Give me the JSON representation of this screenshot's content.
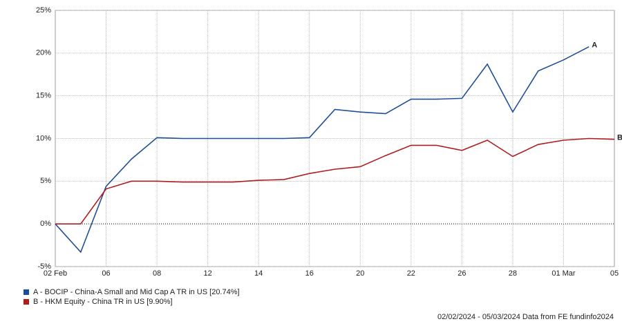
{
  "chart_data": {
    "type": "line",
    "categories": [
      "02 Feb",
      null,
      "06",
      null,
      "08",
      null,
      "12",
      null,
      "14",
      null,
      "16",
      null,
      "20",
      null,
      "22",
      null,
      "26",
      null,
      "28",
      null,
      "01 Mar",
      null,
      "05"
    ],
    "series": [
      {
        "name": "A - BOCIP - China-A Small and Mid Cap A TR in US [20.74%]",
        "label": "A",
        "color": "#1f4e99",
        "values": [
          0,
          -3.3,
          4.4,
          7.6,
          10.1,
          10.0,
          10.0,
          10.0,
          10.0,
          10.0,
          10.1,
          13.4,
          13.1,
          12.9,
          14.6,
          14.6,
          14.7,
          18.7,
          13.1,
          17.9,
          19.2,
          20.74,
          null
        ]
      },
      {
        "name": "B - HKM Equity - China TR in US [9.90%]",
        "label": "B",
        "color": "#b01c1c",
        "values": [
          0,
          0,
          4.1,
          5.0,
          5.0,
          4.9,
          4.9,
          4.9,
          5.1,
          5.2,
          5.9,
          6.4,
          6.7,
          8.0,
          9.2,
          9.2,
          8.6,
          9.8,
          7.9,
          9.3,
          9.8,
          10.0,
          9.9
        ]
      }
    ],
    "ylim": [
      -5,
      25
    ],
    "yticks": [
      {
        "value": -5,
        "label": "-5%"
      },
      {
        "value": 0,
        "label": "0%"
      },
      {
        "value": 5,
        "label": "5%"
      },
      {
        "value": 10,
        "label": "10%"
      },
      {
        "value": 15,
        "label": "15%"
      },
      {
        "value": 20,
        "label": "20%"
      },
      {
        "value": 25,
        "label": "25%"
      }
    ],
    "grid": true,
    "footer": "02/02/2024 - 05/03/2024 Data from FE fundinfo2024"
  }
}
